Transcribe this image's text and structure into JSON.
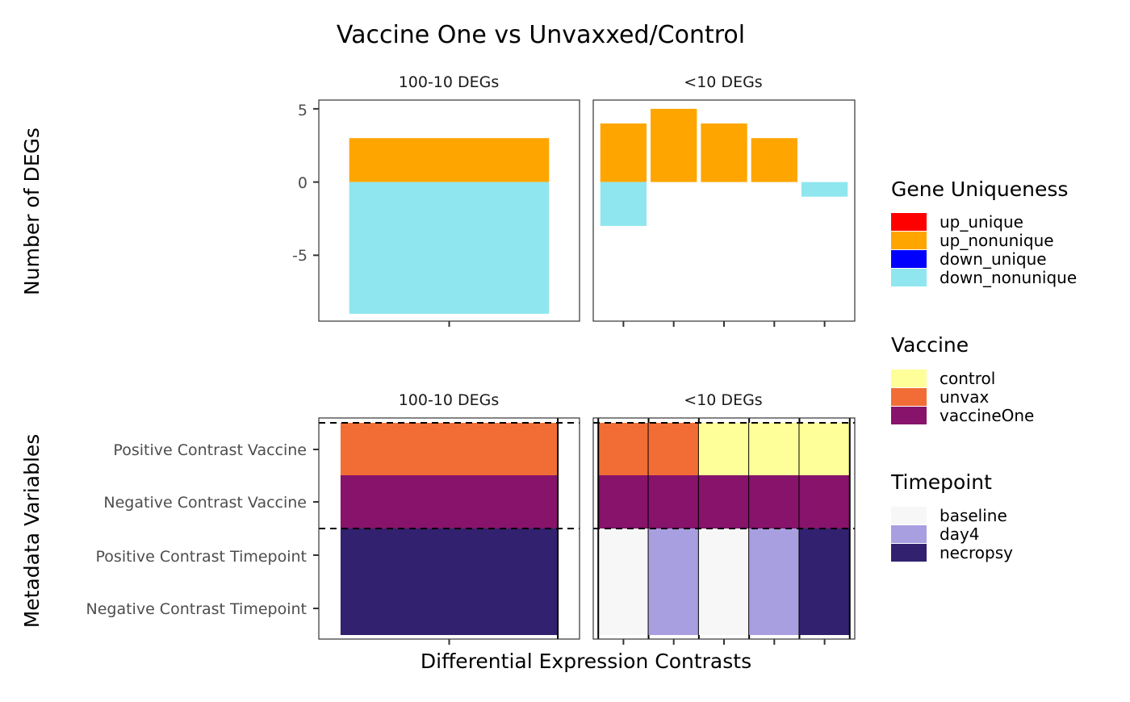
{
  "title": "Vaccine One vs Unvaxxed/Control",
  "chart_data": [
    {
      "type": "bar",
      "name": "deg-counts",
      "ylabel": "Number of DEGs",
      "xlabel": "",
      "ylim": [
        -9.5,
        5.6
      ],
      "yticks": [
        5,
        0,
        -5
      ],
      "ytick_labels": [
        "5",
        "0",
        "-5"
      ],
      "grid": false,
      "facets": [
        {
          "label": "100-10 DEGs",
          "bars": [
            {
              "up": 3,
              "down": -9
            }
          ]
        },
        {
          "label": "<10 DEGs",
          "bars": [
            {
              "up": 4,
              "down": -3
            },
            {
              "up": 5,
              "down": 0
            },
            {
              "up": 4,
              "down": 0
            },
            {
              "up": 3,
              "down": 0
            },
            {
              "up": 0,
              "down": -1
            }
          ]
        }
      ]
    },
    {
      "type": "heatmap",
      "name": "metadata-tiles",
      "ylabel": "Metadata Variables",
      "xlabel": "Differential Expression Contrasts",
      "rows": [
        "Positive Contrast Vaccine",
        "Negative Contrast Vaccine",
        "Positive Contrast Timepoint",
        "Negative Contrast Timepoint"
      ],
      "facets": [
        {
          "label": "100-10 DEGs",
          "columns": [
            [
              "unvax",
              "vaccineOne",
              "necropsy",
              "necropsy"
            ]
          ]
        },
        {
          "label": "<10 DEGs",
          "columns": [
            [
              "unvax",
              "vaccineOne",
              "baseline",
              "baseline"
            ],
            [
              "unvax",
              "vaccineOne",
              "day4",
              "day4"
            ],
            [
              "control",
              "vaccineOne",
              "baseline",
              "baseline"
            ],
            [
              "control",
              "vaccineOne",
              "day4",
              "day4"
            ],
            [
              "control",
              "vaccineOne",
              "necropsy",
              "necropsy"
            ]
          ]
        }
      ]
    }
  ],
  "legends": [
    {
      "title": "Gene Uniqueness",
      "items": [
        {
          "label": "up_unique",
          "color": "#ff0000"
        },
        {
          "label": "up_nonunique",
          "color": "#ffa500"
        },
        {
          "label": "down_unique",
          "color": "#0000ff"
        },
        {
          "label": "down_nonunique",
          "color": "#90e6ee"
        }
      ]
    },
    {
      "title": "Vaccine",
      "items": [
        {
          "label": "control",
          "color": "#ffff99"
        },
        {
          "label": "unvax",
          "color": "#f26d35"
        },
        {
          "label": "vaccineOne",
          "color": "#87136b"
        }
      ]
    },
    {
      "title": "Timepoint",
      "items": [
        {
          "label": "baseline",
          "color": "#f7f7f7"
        },
        {
          "label": "day4",
          "color": "#a89fe1"
        },
        {
          "label": "necropsy",
          "color": "#31216e"
        }
      ]
    }
  ]
}
